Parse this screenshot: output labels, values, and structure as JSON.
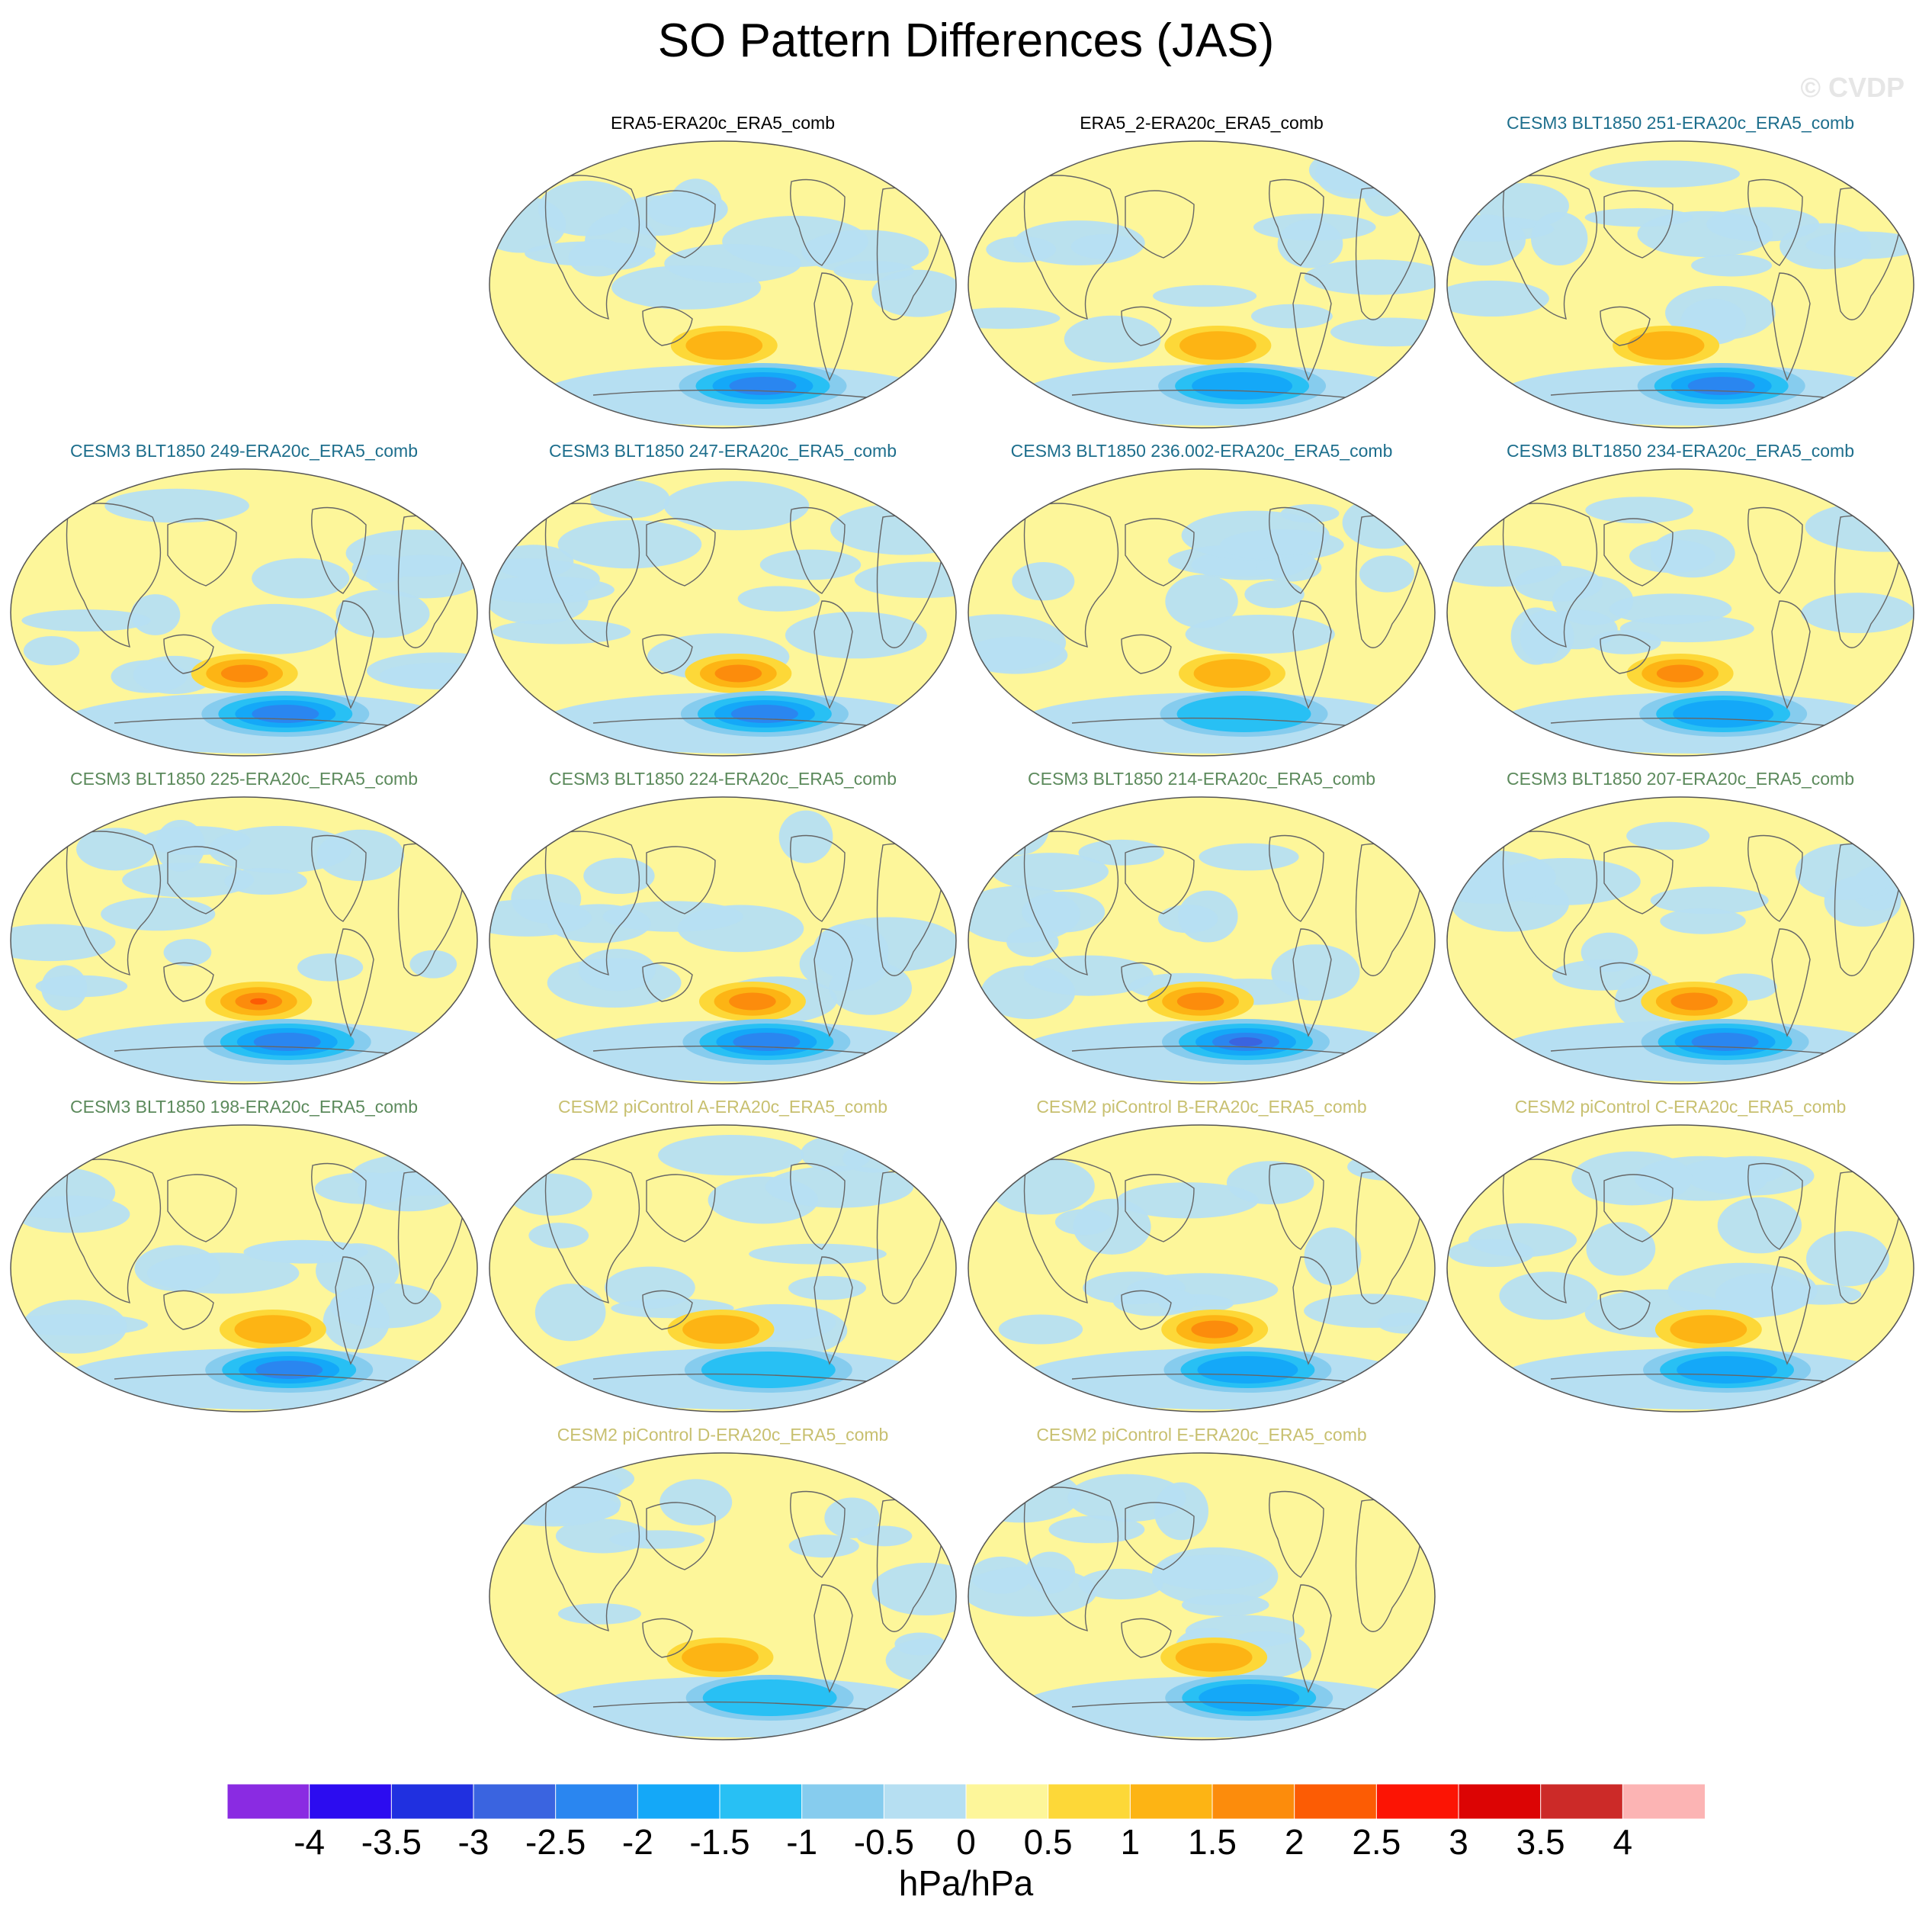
{
  "figure": {
    "title": "SO Pattern Differences (JAS)",
    "watermark": "© CVDP",
    "units": "hPa/hPa"
  },
  "colors": {
    "reference_title": "#000000",
    "cesm3_recent_title": "#1d6e8c",
    "cesm3_older_title": "#5c8a5c",
    "cesm2_title": "#c8c070",
    "coastline": "#666666",
    "map_outline": "#555555"
  },
  "chart_data": {
    "type": "heatmap",
    "title": "SO Pattern Differences (JAS)",
    "projection": "Robinson, centered on Pacific",
    "units": "hPa/hPa",
    "colorbar": {
      "levels": [
        -4,
        -3.5,
        -3,
        -2.5,
        -2,
        -1.5,
        -1,
        -0.5,
        0,
        0.5,
        1,
        1.5,
        2,
        2.5,
        3,
        3.5,
        4
      ],
      "labels": [
        "-4",
        "-3.5",
        "-3",
        "-2.5",
        "-2",
        "-1.5",
        "-1",
        "-0.5",
        "0",
        "0.5",
        "1",
        "1.5",
        "2",
        "2.5",
        "3",
        "3.5",
        "4"
      ],
      "colors": [
        "#8a2be2",
        "#2c0cf0",
        "#2030e0",
        "#3a64e0",
        "#2a86f0",
        "#14a8f8",
        "#28c0f4",
        "#86ccee",
        "#b6dff2",
        "#fdf69a",
        "#fdd838",
        "#fdb414",
        "#fc8c0c",
        "#fc5c04",
        "#fc1404",
        "#dc0404",
        "#cc2a28",
        "#fcb4b4"
      ]
    },
    "panels": [
      {
        "title": "ERA5-ERA20c_ERA5_comb",
        "group": "reference",
        "so_neg_max": -2.2,
        "so_pos_max": 1.2,
        "pattern": "weak dipole, negative band over Antarctic coast"
      },
      {
        "title": "ERA5_2-ERA20c_ERA5_comb",
        "group": "reference",
        "so_neg_max": -2.0,
        "so_pos_max": 1.4,
        "pattern": "weak dipole, positive center south Pacific"
      },
      {
        "title": "CESM3 BLT1850 251-ERA20c_ERA5_comb",
        "group": "cesm3_recent",
        "so_neg_max": -2.1,
        "so_pos_max": 1.2,
        "pattern": "negative south Pacific, positive southeast Pacific"
      },
      {
        "title": "CESM3 BLT1850 249-ERA20c_ERA5_comb",
        "group": "cesm3_recent",
        "so_neg_max": -2.5,
        "so_pos_max": 1.6,
        "pattern": "strong negative Amundsen-Bellingshausen, positive midlatitude band"
      },
      {
        "title": "CESM3 BLT1850 247-ERA20c_ERA5_comb",
        "group": "cesm3_recent",
        "so_neg_max": -2.3,
        "so_pos_max": 1.6,
        "pattern": "strong negative Antarctic band, positive south Pacific"
      },
      {
        "title": "CESM3 BLT1850 236.002-ERA20c_ERA5_comb",
        "group": "cesm3_recent",
        "so_neg_max": -1.3,
        "so_pos_max": 1.4,
        "pattern": "positive south Pacific center, weak negatives"
      },
      {
        "title": "CESM3 BLT1850 234-ERA20c_ERA5_comb",
        "group": "cesm3_recent",
        "so_neg_max": -1.8,
        "so_pos_max": 1.6,
        "pattern": "positive south Pacific, negative Antarctic coast"
      },
      {
        "title": "CESM3 BLT1850 225-ERA20c_ERA5_comb",
        "group": "cesm3_older",
        "so_neg_max": -2.4,
        "so_pos_max": 2.1,
        "pattern": "strong dipole, positive over negative"
      },
      {
        "title": "CESM3 BLT1850 224-ERA20c_ERA5_comb",
        "group": "cesm3_older",
        "so_neg_max": -2.2,
        "so_pos_max": 1.6,
        "pattern": "dipole south Pacific"
      },
      {
        "title": "CESM3 BLT1850 214-ERA20c_ERA5_comb",
        "group": "cesm3_older",
        "so_neg_max": -2.6,
        "so_pos_max": 1.8,
        "pattern": "strong dipole, wide negative band"
      },
      {
        "title": "CESM3 BLT1850 207-ERA20c_ERA5_comb",
        "group": "cesm3_older",
        "so_neg_max": -2.1,
        "so_pos_max": 1.6,
        "pattern": "dipole south Pacific, positive Indian Ocean"
      },
      {
        "title": "CESM3 BLT1850 198-ERA20c_ERA5_comb",
        "group": "cesm3_older",
        "so_neg_max": -2.2,
        "so_pos_max": 1.4,
        "pattern": "dipole south Pacific"
      },
      {
        "title": "CESM2 piControl A-ERA20c_ERA5_comb",
        "group": "cesm2",
        "so_neg_max": -1.4,
        "so_pos_max": 1.4,
        "pattern": "weak wave-3 pattern"
      },
      {
        "title": "CESM2 piControl B-ERA20c_ERA5_comb",
        "group": "cesm2",
        "so_neg_max": -1.9,
        "so_pos_max": 1.6,
        "pattern": "positive Indian Ocean sector, negative south Pacific"
      },
      {
        "title": "CESM2 piControl C-ERA20c_ERA5_comb",
        "group": "cesm2",
        "so_neg_max": -2.0,
        "so_pos_max": 1.4,
        "pattern": "dipole south Pacific"
      },
      {
        "title": "CESM2 piControl D-ERA20c_ERA5_comb",
        "group": "cesm2",
        "so_neg_max": -1.5,
        "so_pos_max": 1.5,
        "pattern": "positive Indian Ocean sector, weak negatives"
      },
      {
        "title": "CESM2 piControl E-ERA20c_ERA5_comb",
        "group": "cesm2",
        "so_neg_max": -1.6,
        "so_pos_max": 1.3,
        "pattern": "weak dipole"
      }
    ]
  }
}
